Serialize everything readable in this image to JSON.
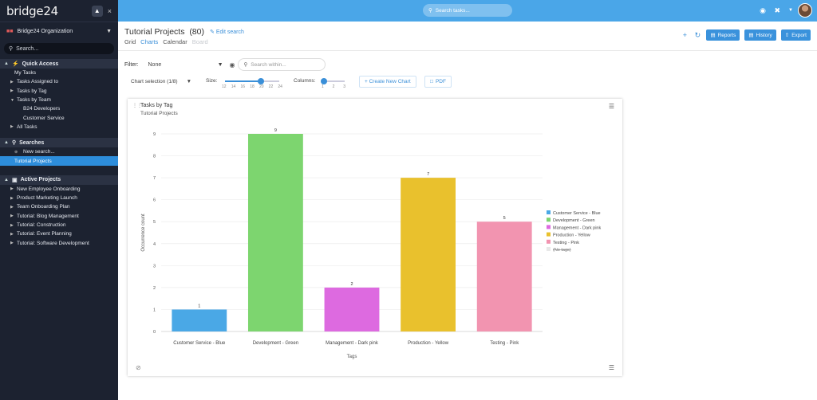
{
  "app": {
    "logo": "bridge24",
    "pin_icon": "pin-icon",
    "close_icon": "×"
  },
  "sidebar": {
    "org": "Bridge24 Organization",
    "search_placeholder": "Search...",
    "quick_access": {
      "title": "Quick Access",
      "items": [
        "My Tasks",
        "Tasks Assigned to",
        "Tasks by Tag",
        "Tasks by Team",
        "B24 Developers",
        "Customer Service",
        "All Tasks"
      ]
    },
    "searches": {
      "title": "Searches",
      "new_search": "New search...",
      "active_item": "Tutorial Projects"
    },
    "active_projects": {
      "title": "Active Projects",
      "items": [
        "New Employee Onboarding",
        "Product Marketing Launch",
        "Team Onboarding Plan",
        "Tutorial: Blog Management",
        "Tutorial: Construction",
        "Tutorial: Event Planning",
        "Tutorial: Software Development"
      ]
    }
  },
  "topbar": {
    "search_placeholder": "Search tasks..."
  },
  "header": {
    "title": "Tutorial Projects",
    "count": "(80)",
    "edit_search": "Edit search",
    "tabs": [
      "Grid",
      "Charts",
      "Calendar",
      "Board"
    ],
    "active_tab": "Charts",
    "buttons": {
      "reports": "Reports",
      "history": "History",
      "export": "Export"
    }
  },
  "filter": {
    "label": "Filter:",
    "value": "None",
    "search_placeholder": "Search within..."
  },
  "controls": {
    "chart_selection": "Chart selection (1/8)",
    "size_label": "Size:",
    "size_ticks": [
      "12",
      "14",
      "16",
      "18",
      "20",
      "22",
      "24"
    ],
    "size_value": 20,
    "columns_label": "Columns:",
    "column_ticks": [
      "1",
      "2",
      "3"
    ],
    "columns_value": 1,
    "create_chart": "+ Create New Chart",
    "pdf": "PDF"
  },
  "chart_card": {
    "title": "Tasks by Tag",
    "subtitle": "Tutorial Projects"
  },
  "chart_data": {
    "type": "bar",
    "title": "Tasks by Tag",
    "subtitle": "Tutorial Projects",
    "categories": [
      "Customer Service - Blue",
      "Development - Green",
      "Management - Dark pink",
      "Production - Yellow",
      "Testing - Pink"
    ],
    "values": [
      1,
      9,
      2,
      7,
      5
    ],
    "colors": [
      "#4aa8e6",
      "#7dd56f",
      "#dd6ae0",
      "#e9c12d",
      "#f294b0"
    ],
    "xlabel": "Tags",
    "ylabel": "Occurrence count",
    "ylim": [
      0,
      9
    ],
    "yticks": [
      0,
      1,
      2,
      3,
      4,
      5,
      6,
      7,
      8,
      9
    ],
    "grid": true,
    "legend": {
      "placement": "right",
      "entries": [
        {
          "name": "Customer Service - Blue",
          "color": "#4aa8e6",
          "struck": false
        },
        {
          "name": "Development - Green",
          "color": "#7dd56f",
          "struck": false
        },
        {
          "name": "Management - Dark pink",
          "color": "#dd6ae0",
          "struck": false
        },
        {
          "name": "Production - Yellow",
          "color": "#e9c12d",
          "struck": false
        },
        {
          "name": "Testing - Pink",
          "color": "#f294b0",
          "struck": false
        },
        {
          "name": "(No tags)",
          "color": "#e8e8e8",
          "struck": true
        }
      ]
    }
  }
}
